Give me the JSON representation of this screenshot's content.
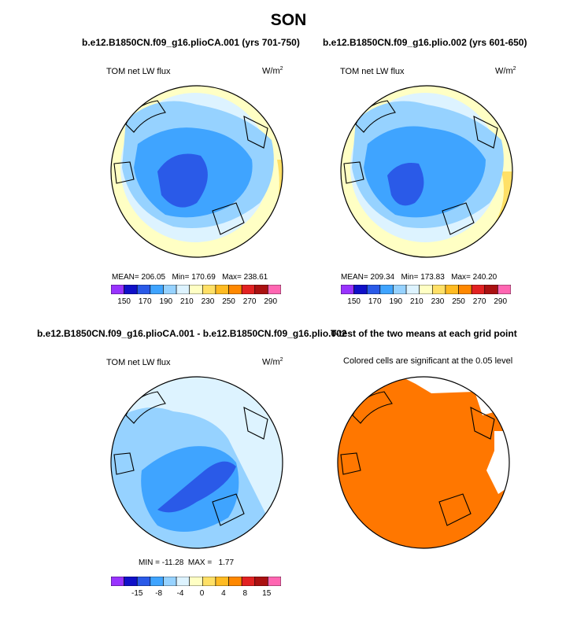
{
  "page": {
    "title": "SON",
    "case1_title": "b.e12.B1850CN.f09_g16.plioCA.001 (yrs 701-750)",
    "case2_title": "b.e12.B1850CN.f09_g16.plio.002 (yrs 601-650)",
    "diff_title": "b.e12.B1850CN.f09_g16.plioCA.001 - b.e12.B1850CN.f09_g16.plio.002",
    "ttest_title": "T-test of the two means at each grid point"
  },
  "panels": {
    "p1": {
      "variable": "TOM net LW flux",
      "units": "W/m",
      "units_sup": "2",
      "mean_label": "MEAN=",
      "mean": "206.05",
      "min_label": "Min=",
      "min": "170.69",
      "max_label": "Max=",
      "max": "238.61"
    },
    "p2": {
      "variable": "TOM net LW flux",
      "units": "W/m",
      "units_sup": "2",
      "mean_label": "MEAN=",
      "mean": "209.34",
      "min_label": "Min=",
      "min": "173.83",
      "max_label": "Max=",
      "max": "240.20"
    },
    "p3": {
      "variable": "TOM net LW flux",
      "units": "W/m",
      "units_sup": "2",
      "min_label": "MIN =",
      "min": "-11.28",
      "max_label": "MAX =",
      "max": "1.77"
    },
    "p4": {
      "note": "Colored cells are significant at the 0.05 level"
    }
  },
  "colorbars": {
    "abs": {
      "labels": [
        "150",
        "170",
        "190",
        "210",
        "230",
        "250",
        "270",
        "290"
      ],
      "colors": [
        "#9933ff",
        "#1010c8",
        "#2a5ae8",
        "#3fa4ff",
        "#96d2ff",
        "#ddf3ff",
        "#ffffc4",
        "#ffe066",
        "#ffbb22",
        "#ff8800",
        "#e22222",
        "#aa1111",
        "#ff66b2"
      ]
    },
    "diff": {
      "labels": [
        "-15",
        "-8",
        "-4",
        "0",
        "4",
        "8",
        "15"
      ],
      "colors": [
        "#9933ff",
        "#1010c8",
        "#2a5ae8",
        "#3fa4ff",
        "#96d2ff",
        "#ddf3ff",
        "#ffffc4",
        "#ffe066",
        "#ffbb22",
        "#ff8800",
        "#e22222",
        "#aa1111",
        "#ff66b2"
      ]
    }
  },
  "chart_data": [
    {
      "type": "heatmap",
      "title": "b.e12.B1850CN.f09_g16.plioCA.001 (yrs 701-750)",
      "variable": "TOM net LW flux",
      "units": "W/m2",
      "season": "SON",
      "mean": 206.05,
      "min": 170.69,
      "max": 238.61,
      "levels": [
        150,
        170,
        190,
        210,
        230,
        250,
        270,
        290
      ]
    },
    {
      "type": "heatmap",
      "title": "b.e12.B1850CN.f09_g16.plio.002 (yrs 601-650)",
      "variable": "TOM net LW flux",
      "units": "W/m2",
      "season": "SON",
      "mean": 209.34,
      "min": 173.83,
      "max": 240.2,
      "levels": [
        150,
        170,
        190,
        210,
        230,
        250,
        270,
        290
      ]
    },
    {
      "type": "heatmap",
      "title": "b.e12.B1850CN.f09_g16.plioCA.001 - b.e12.B1850CN.f09_g16.plio.002",
      "variable": "TOM net LW flux",
      "units": "W/m2",
      "min": -11.28,
      "max": 1.77,
      "levels": [
        -15,
        -8,
        -4,
        0,
        4,
        8,
        15
      ]
    },
    {
      "type": "heatmap",
      "title": "T-test of the two means at each grid point",
      "note": "Colored cells are significant at the 0.05 level",
      "significance_level": 0.05
    }
  ]
}
